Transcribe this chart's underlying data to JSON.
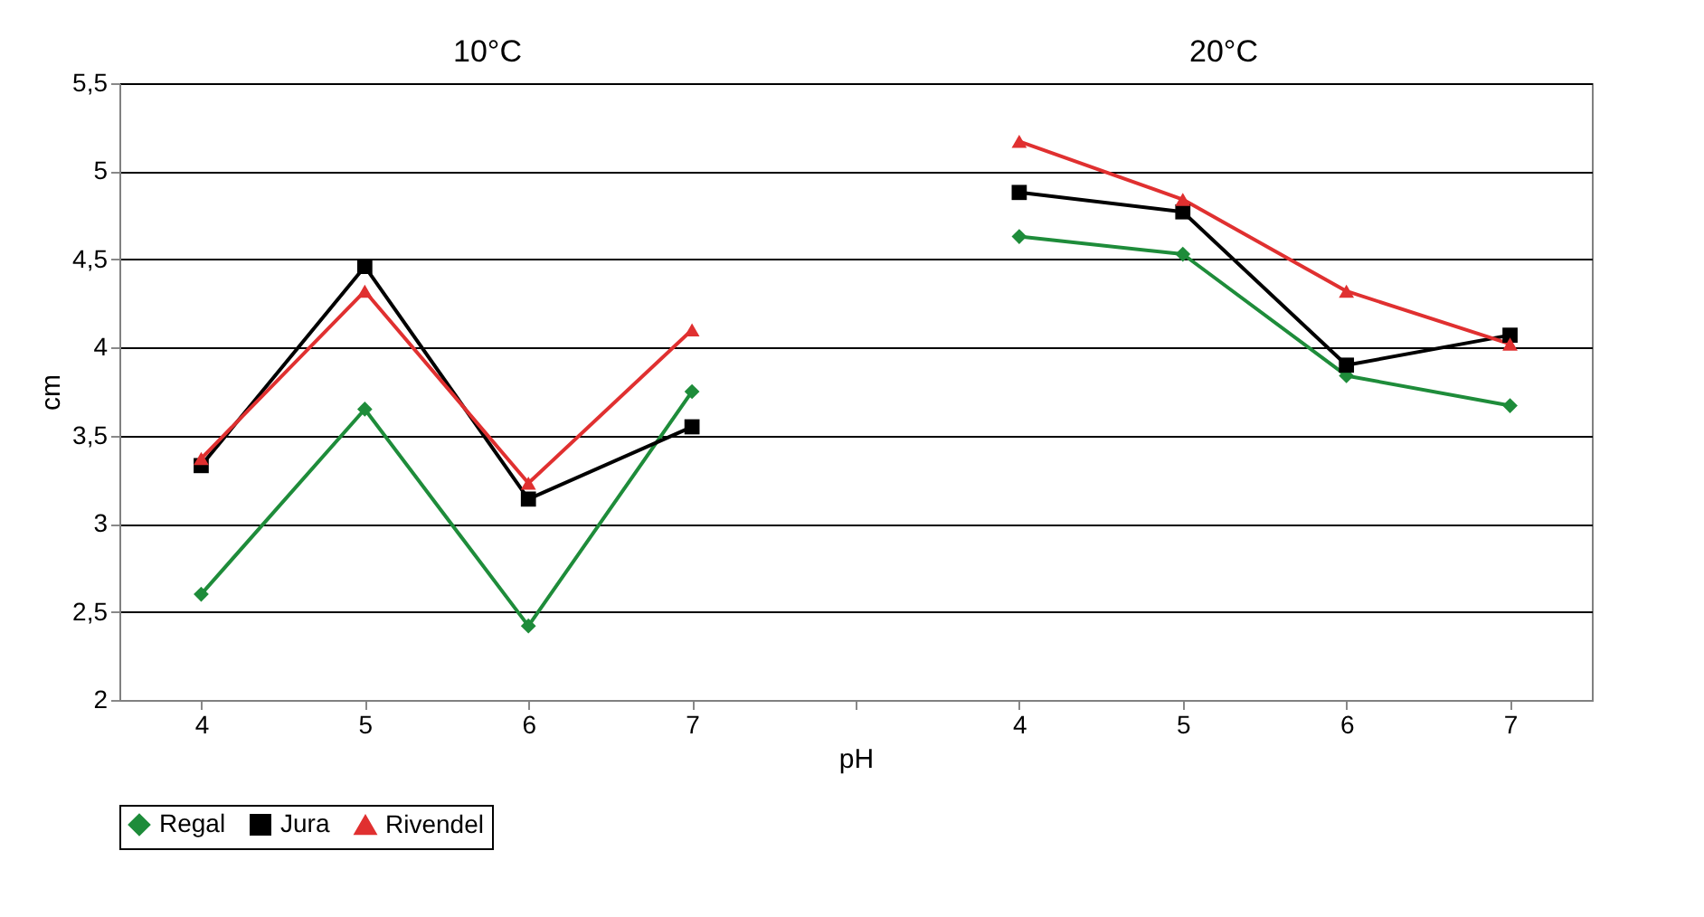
{
  "chart_data": {
    "type": "line",
    "xlabel": "pH",
    "ylabel": "cm",
    "categories": [
      "4",
      "5",
      "6",
      "7",
      null,
      "4",
      "5",
      "6",
      "7"
    ],
    "series": [
      {
        "name": "Regal",
        "color": "#1e8c3a",
        "marker": "diamond",
        "values": [
          2.6,
          3.65,
          2.42,
          3.75,
          null,
          4.63,
          4.53,
          3.84,
          3.67
        ]
      },
      {
        "name": "Jura",
        "color": "#000000",
        "marker": "square",
        "values": [
          3.33,
          4.46,
          3.14,
          3.55,
          null,
          4.88,
          4.77,
          3.9,
          4.07
        ]
      },
      {
        "name": "Rivendel",
        "color": "#e03030",
        "marker": "triangle",
        "values": [
          3.37,
          4.32,
          3.23,
          4.1,
          null,
          5.17,
          4.84,
          4.32,
          4.02
        ]
      }
    ],
    "ylim": [
      2,
      5.5
    ],
    "yticks": [
      2,
      {
        "value": 2.5,
        "label": "2,5"
      },
      3,
      {
        "value": 3.5,
        "label": "3,5"
      },
      4,
      {
        "value": 4.5,
        "label": "4,5"
      },
      5,
      {
        "value": 5.5,
        "label": "5,5"
      }
    ],
    "grid": "y",
    "legend": "bottom",
    "line_style": "solid",
    "annotations": [
      "10°C",
      "20°C"
    ]
  }
}
